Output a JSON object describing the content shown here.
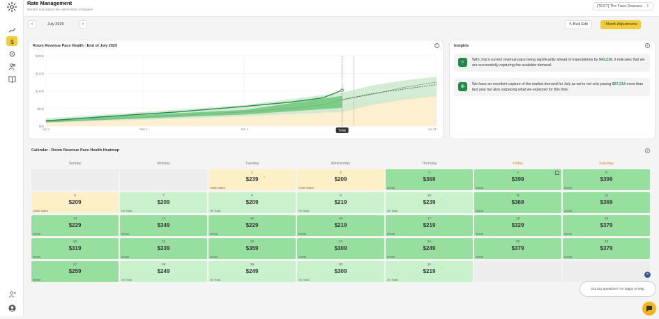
{
  "header": {
    "title": "Rate Management",
    "subtitle": "Monitor and adjust rate optimization strategies",
    "hotel_select": "[TEST] The Faux Seasons"
  },
  "sidebar": {
    "items": [
      {
        "icon": "trend-icon"
      },
      {
        "icon": "dollar-icon",
        "active": true
      },
      {
        "icon": "gear-icon"
      },
      {
        "icon": "users-icon"
      },
      {
        "icon": "book-icon"
      }
    ],
    "bottom": [
      {
        "icon": "add-user-icon"
      },
      {
        "icon": "profile-icon"
      }
    ]
  },
  "toolbar": {
    "month": "July 2025",
    "prev": "‹",
    "next": "›",
    "bulk_edit": "Bulk Edit",
    "month_adjustments": "Month Adjustments"
  },
  "pace_chart": {
    "title": "Room Revenue Pace Health - End of July 2025",
    "today_label": "Today"
  },
  "chart_data": {
    "type": "area",
    "title": "Room Revenue Pace Health - End of July 2025",
    "y_ticks": [
      "$200k",
      "$150k",
      "$100k",
      "$50k",
      "$0k"
    ],
    "x_ticks": [
      "Apr 1",
      "May 1",
      "Jun 1",
      "Jul 1",
      "Jul 31"
    ],
    "ylim": [
      0,
      200000
    ],
    "today_label": "Today",
    "series": [
      {
        "values": [
          [
            0,
            12000
          ],
          [
            20,
            20000
          ],
          [
            40,
            30000
          ],
          [
            60,
            40000
          ],
          [
            75,
            50000
          ],
          [
            85,
            60000
          ],
          [
            91,
            75000
          ],
          [
            100,
            90000
          ],
          [
            110,
            110000
          ],
          [
            120,
            125000
          ]
        ]
      },
      {
        "values": [
          [
            0,
            15000
          ],
          [
            20,
            28000
          ],
          [
            40,
            40000
          ],
          [
            60,
            55000
          ],
          [
            75,
            68000
          ],
          [
            85,
            80000
          ],
          [
            91,
            102000
          ]
        ]
      },
      {
        "values": [
          [
            91,
            75000
          ],
          [
            100,
            92000
          ],
          [
            110,
            105000
          ],
          [
            120,
            118000
          ]
        ]
      }
    ]
  },
  "insights": {
    "title": "Insights",
    "items": [
      {
        "pre": "With July's current revenue pace being significantly ahead of expectations by ",
        "amount": "$43,216",
        "post": ", it indicates that we are successfully capturing the available demand."
      },
      {
        "pre": "We have an excellent capture of the market demand for July as we're not only pacing ",
        "amount": "$37,214",
        "post": " more than last year but also outpacing what we expected for this time."
      }
    ]
  },
  "calendar": {
    "title": "Calendar - Room Revenue Pace Health Heatmap",
    "days": [
      "Sunday",
      "Monday",
      "Tuesday",
      "Wednesday",
      "Thursday",
      "Friday",
      "Saturday"
    ],
    "weeks": [
      [
        {},
        {},
        {
          "day": "1",
          "rate": "$239",
          "status": "Under Watch",
          "kind": "watch",
          "dot": true
        },
        {
          "day": "2",
          "rate": "$209",
          "status": "Under Watch",
          "kind": "watch"
        },
        {
          "day": "3",
          "rate": "$369",
          "status": "Ahead",
          "kind": "ahead"
        },
        {
          "day": "4",
          "rate": "$399",
          "status": "Ahead",
          "kind": "ahead",
          "lock": true
        },
        {
          "day": "5",
          "rate": "$399",
          "status": "Ahead",
          "kind": "ahead",
          "dot": true
        }
      ],
      [
        {
          "day": "6",
          "rate": "$209",
          "status": "Under Watch",
          "kind": "watch"
        },
        {
          "day": "7",
          "rate": "$209",
          "status": "On Track",
          "kind": "track"
        },
        {
          "day": "8",
          "rate": "$209",
          "status": "On Track",
          "kind": "track"
        },
        {
          "day": "9",
          "rate": "$219",
          "status": "On Track",
          "kind": "track"
        },
        {
          "day": "10",
          "rate": "$239",
          "status": "On Track",
          "kind": "track",
          "dot": true
        },
        {
          "day": "11",
          "rate": "$369",
          "status": "Ahead",
          "kind": "ahead"
        },
        {
          "day": "12",
          "rate": "$369",
          "status": "Ahead",
          "kind": "ahead"
        }
      ],
      [
        {
          "day": "13",
          "rate": "$229",
          "status": "Ahead",
          "kind": "ahead"
        },
        {
          "day": "14",
          "rate": "$349",
          "status": "Ahead",
          "kind": "ahead"
        },
        {
          "day": "15",
          "rate": "$229",
          "status": "Ahead",
          "kind": "ahead"
        },
        {
          "day": "16",
          "rate": "$219",
          "status": "Ahead",
          "kind": "ahead"
        },
        {
          "day": "17",
          "rate": "$219",
          "status": "Ahead",
          "kind": "ahead"
        },
        {
          "day": "18",
          "rate": "$329",
          "status": "Ahead",
          "kind": "ahead"
        },
        {
          "day": "19",
          "rate": "$379",
          "status": "Ahead",
          "kind": "ahead",
          "dot": true
        }
      ],
      [
        {
          "day": "20",
          "rate": "$319",
          "status": "Ahead",
          "kind": "ahead",
          "dot": true
        },
        {
          "day": "21",
          "rate": "$339",
          "status": "Ahead",
          "kind": "ahead"
        },
        {
          "day": "22",
          "rate": "$359",
          "status": "Ahead",
          "kind": "ahead"
        },
        {
          "day": "23",
          "rate": "$309",
          "status": "Ahead",
          "kind": "ahead"
        },
        {
          "day": "24",
          "rate": "$249",
          "status": "Ahead",
          "kind": "ahead",
          "dot": true
        },
        {
          "day": "25",
          "rate": "$379",
          "status": "Ahead",
          "kind": "ahead"
        },
        {
          "day": "26",
          "rate": "$379",
          "status": "Ahead",
          "kind": "ahead"
        }
      ],
      [
        {
          "day": "27",
          "rate": "$259",
          "status": "Ahead",
          "kind": "ahead"
        },
        {
          "day": "28",
          "rate": "$249",
          "status": "On Track",
          "kind": "track"
        },
        {
          "day": "29",
          "rate": "$249",
          "status": "On Track",
          "kind": "track"
        },
        {
          "day": "30",
          "rate": "$309",
          "status": "On Track",
          "kind": "track"
        },
        {
          "day": "31",
          "rate": "$219",
          "status": "On Track",
          "kind": "track",
          "dot": true
        },
        {},
        {}
      ]
    ]
  },
  "chat": {
    "message": "Got any questions? I'm happy to help.",
    "close": "×"
  },
  "colors": {
    "accent": "#f2cd3a",
    "ahead": "#97df9f",
    "on_track": "#c9f2cc",
    "under_watch": "#fdefc6",
    "brand_green": "#1f8a4c"
  }
}
